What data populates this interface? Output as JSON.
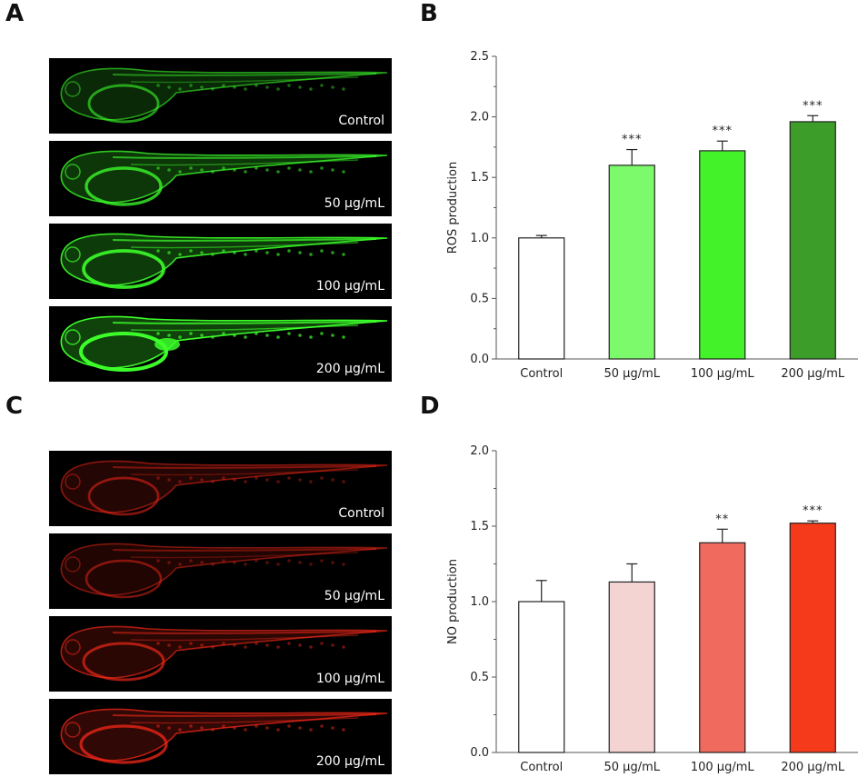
{
  "panels": {
    "A": {
      "letter": "A",
      "images": [
        {
          "label": "Control"
        },
        {
          "label": "50 μg/mL"
        },
        {
          "label": "100 μg/mL"
        },
        {
          "label": "200 μg/mL"
        }
      ]
    },
    "C": {
      "letter": "C",
      "images": [
        {
          "label": "Control"
        },
        {
          "label": "50 μg/mL"
        },
        {
          "label": "100 μg/mL"
        },
        {
          "label": "200 μg/mL"
        }
      ]
    }
  },
  "chart_data": [
    {
      "panel": "B",
      "type": "bar",
      "categories": [
        "Control",
        "50 μg/mL",
        "100 μg/mL",
        "200 μg/mL"
      ],
      "values": [
        1.0,
        1.6,
        1.72,
        1.96
      ],
      "errors": [
        0.02,
        0.13,
        0.08,
        0.05
      ],
      "significance": [
        "",
        "***",
        "***",
        "***"
      ],
      "colors": [
        "#ffffff",
        "#7dfa6c",
        "#44f22a",
        "#3c9e28"
      ],
      "xlabel": "",
      "ylabel": "ROS production",
      "ylim": [
        0,
        2.5
      ],
      "yticks": [
        "0.0",
        "0.5",
        "1.0",
        "1.5",
        "2.0",
        "2.5"
      ],
      "grid": false,
      "legend": "none"
    },
    {
      "panel": "D",
      "type": "bar",
      "categories": [
        "Control",
        "50 μg/mL",
        "100 μg/mL",
        "200 μg/mL"
      ],
      "values": [
        1.0,
        1.13,
        1.39,
        1.52
      ],
      "errors": [
        0.14,
        0.12,
        0.09,
        0.015
      ],
      "significance": [
        "",
        "",
        "**",
        "***"
      ],
      "colors": [
        "#ffffff",
        "#f4d4d3",
        "#f06a5e",
        "#f53a1c"
      ],
      "xlabel": "",
      "ylabel": "NO production",
      "ylim": [
        0,
        2.0
      ],
      "yticks": [
        "0.0",
        "0.5",
        "1.0",
        "1.5",
        "2.0"
      ],
      "grid": false,
      "legend": "none"
    }
  ]
}
